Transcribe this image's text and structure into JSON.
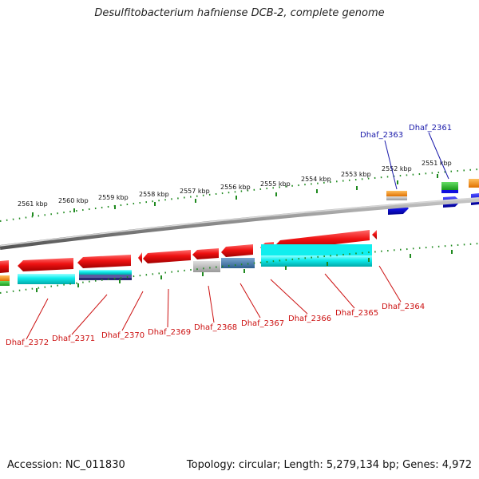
{
  "title": "Desulfitobacterium hafniense DCB-2, complete genome",
  "accession": "Accession: NC_011830",
  "summary": "Topology: circular; Length: 5,279,134 bp; Genes: 4,972",
  "scale_labels": [
    "2561 kbp",
    "2560 kbp",
    "2559 kbp",
    "2558 kbp",
    "2557 kbp",
    "2556 kbp",
    "2555 kbp",
    "2554 kbp",
    "2553 kbp",
    "2552 kbp",
    "2551 kbp"
  ],
  "top_labels": [
    "Dhaf_2363",
    "Dhaf_2361"
  ],
  "bottom_labels": [
    "Dhaf_2372",
    "Dhaf_2371",
    "Dhaf_2370",
    "Dhaf_2369",
    "Dhaf_2368",
    "Dhaf_2367",
    "Dhaf_2366",
    "Dhaf_2365",
    "Dhaf_2364"
  ],
  "colors": {
    "reverse_gene": "#ee1111",
    "forward_gene": "#1010dd",
    "top_label": "#1a1aaa",
    "bottom_label": "#cc1111",
    "tick": "#1f8a1f",
    "backbone": "#8a8a8a"
  }
}
